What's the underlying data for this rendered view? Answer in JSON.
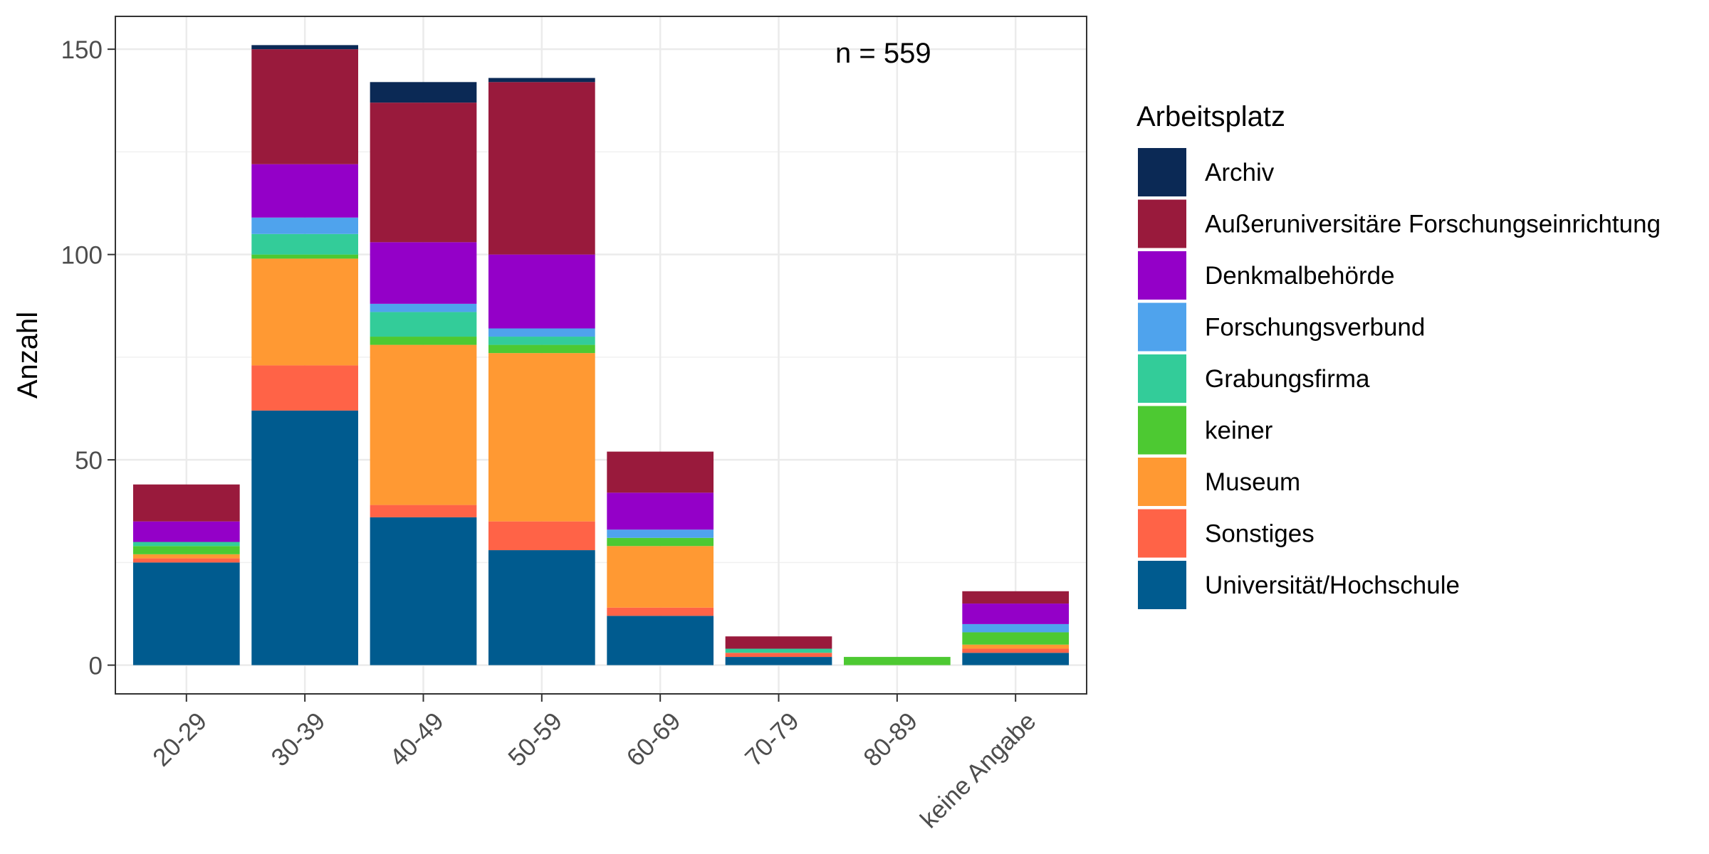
{
  "chart_data": {
    "type": "bar",
    "stacked": true,
    "categories": [
      "20-29",
      "30-39",
      "40-49",
      "50-59",
      "60-69",
      "70-79",
      "80-89",
      "keine Angabe"
    ],
    "ylabel": "Anzahl",
    "xlabel": "",
    "ylim": [
      -7,
      158
    ],
    "yticks": [
      0,
      50,
      100,
      150
    ],
    "grid": true,
    "legend": {
      "title": "Arbeitsplatz",
      "position": "right"
    },
    "annotation": {
      "prefix": "n = ",
      "value": "559"
    },
    "series": [
      {
        "name": "Universität/Hochschule",
        "color": "#005b8f",
        "values": [
          25,
          62,
          36,
          28,
          12,
          2,
          0,
          3
        ]
      },
      {
        "name": "Sonstiges",
        "color": "#ff6347",
        "values": [
          1,
          11,
          3,
          7,
          2,
          1,
          0,
          1
        ]
      },
      {
        "name": "Museum",
        "color": "#ff9933",
        "values": [
          1,
          26,
          39,
          41,
          15,
          0,
          0,
          1
        ]
      },
      {
        "name": "keiner",
        "color": "#4dc932",
        "values": [
          2,
          1,
          2,
          2,
          2,
          0,
          2,
          3
        ]
      },
      {
        "name": "Grabungsfirma",
        "color": "#33cc99",
        "values": [
          1,
          5,
          6,
          2,
          0,
          1,
          0,
          0
        ]
      },
      {
        "name": "Forschungsverbund",
        "color": "#4fa3ed",
        "values": [
          0,
          4,
          2,
          2,
          2,
          0,
          0,
          2
        ]
      },
      {
        "name": "Denkmalbehörde",
        "color": "#9400c8",
        "values": [
          5,
          13,
          15,
          18,
          9,
          0,
          0,
          5
        ]
      },
      {
        "name": "Außeruniversitäre Forschungseinrichtung",
        "color": "#991a3c",
        "values": [
          9,
          28,
          34,
          42,
          10,
          3,
          0,
          3
        ]
      },
      {
        "name": "Archiv",
        "color": "#0b2955",
        "values": [
          0,
          1,
          5,
          1,
          0,
          0,
          0,
          0
        ]
      }
    ],
    "legend_order": [
      "Archiv",
      "Außeruniversitäre Forschungseinrichtung",
      "Denkmalbehörde",
      "Forschungsverbund",
      "Grabungsfirma",
      "keiner",
      "Museum",
      "Sonstiges",
      "Universität/Hochschule"
    ]
  }
}
